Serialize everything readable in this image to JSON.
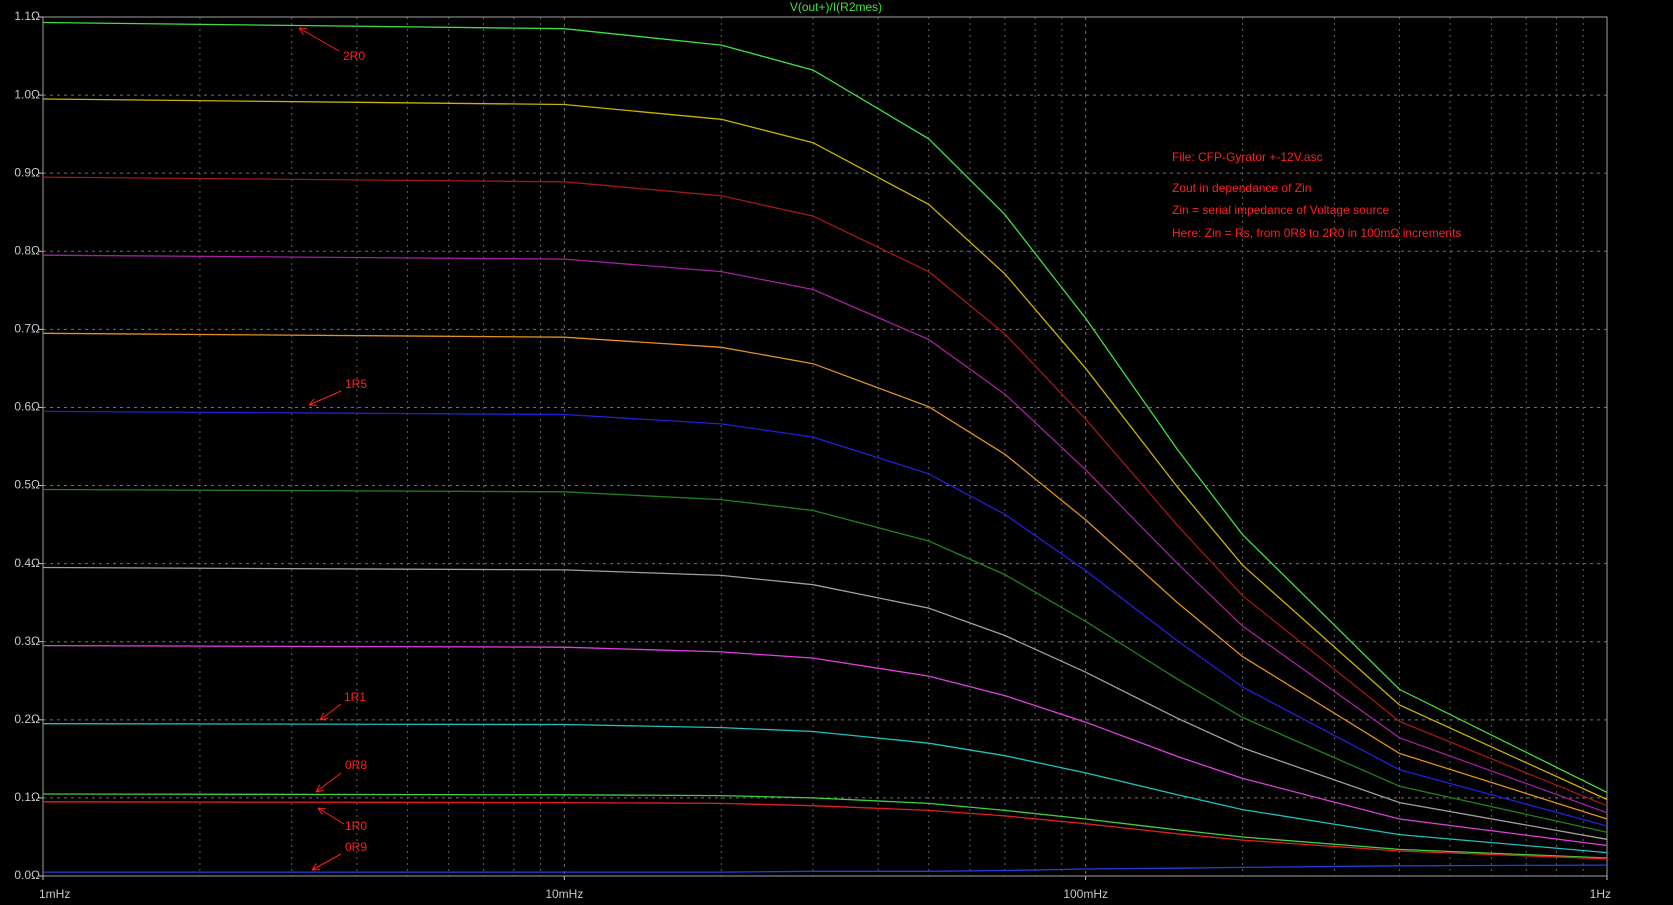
{
  "chart_data": {
    "type": "line",
    "title": "V(out+)/I(R2mes)",
    "log_x": true,
    "grid": true,
    "background": "#000000",
    "title_color": "#40e040",
    "xlim": [
      0.001,
      1
    ],
    "xticks": [
      {
        "value": 0.001,
        "label": "1mHz"
      },
      {
        "value": 0.01,
        "label": "10mHz"
      },
      {
        "value": 0.1,
        "label": "100mHz"
      },
      {
        "value": 1,
        "label": "1Hz"
      }
    ],
    "ylim": [
      0,
      1.1
    ],
    "yticks": [
      {
        "value": 0,
        "label": "0.0Ω"
      },
      {
        "value": 0.1,
        "label": "0.1Ω"
      },
      {
        "value": 0.2,
        "label": "0.2Ω"
      },
      {
        "value": 0.3,
        "label": "0.3Ω"
      },
      {
        "value": 0.4,
        "label": "0.4Ω"
      },
      {
        "value": 0.5,
        "label": "0.5Ω"
      },
      {
        "value": 0.6,
        "label": "0.6Ω"
      },
      {
        "value": 0.7,
        "label": "0.7Ω"
      },
      {
        "value": 0.8,
        "label": "0.8Ω"
      },
      {
        "value": 0.9,
        "label": "0.9Ω"
      },
      {
        "value": 1.0,
        "label": "1.0Ω"
      },
      {
        "value": 1.1,
        "label": "1.1Ω"
      }
    ],
    "x": [
      0.001,
      0.01,
      0.02,
      0.03,
      0.05,
      0.07,
      0.1,
      0.15,
      0.2,
      0.4,
      1
    ],
    "series": [
      {
        "color": "#40e040",
        "values": [
          1.093,
          1.085,
          1.064,
          1.032,
          0.944,
          0.847,
          0.714,
          0.546,
          0.437,
          0.239,
          0.107
        ]
      },
      {
        "color": "#c8b400",
        "values": [
          0.995,
          0.988,
          0.969,
          0.939,
          0.86,
          0.771,
          0.65,
          0.498,
          0.398,
          0.219,
          0.098
        ]
      },
      {
        "color": "#a01818",
        "values": [
          0.895,
          0.889,
          0.871,
          0.845,
          0.774,
          0.694,
          0.585,
          0.449,
          0.359,
          0.198,
          0.09
        ]
      },
      {
        "color": "#a020a0",
        "values": [
          0.795,
          0.79,
          0.774,
          0.751,
          0.687,
          0.617,
          0.52,
          0.4,
          0.32,
          0.177,
          0.081
        ]
      },
      {
        "color": "#e09020",
        "values": [
          0.695,
          0.69,
          0.677,
          0.656,
          0.601,
          0.54,
          0.456,
          0.35,
          0.281,
          0.157,
          0.073
        ]
      },
      {
        "color": "#2020d8",
        "values": [
          0.595,
          0.591,
          0.579,
          0.562,
          0.515,
          0.463,
          0.391,
          0.301,
          0.242,
          0.136,
          0.064
        ]
      },
      {
        "color": "#208020",
        "values": [
          0.495,
          0.492,
          0.482,
          0.468,
          0.429,
          0.386,
          0.326,
          0.252,
          0.203,
          0.115,
          0.056
        ]
      },
      {
        "color": "#a0a0a0",
        "values": [
          0.395,
          0.392,
          0.385,
          0.373,
          0.343,
          0.308,
          0.261,
          0.202,
          0.164,
          0.094,
          0.047
        ]
      },
      {
        "color": "#e040e0",
        "values": [
          0.295,
          0.293,
          0.287,
          0.279,
          0.256,
          0.231,
          0.197,
          0.153,
          0.125,
          0.073,
          0.039
        ]
      },
      {
        "color": "#20c0c0",
        "values": [
          0.195,
          0.194,
          0.19,
          0.185,
          0.17,
          0.154,
          0.132,
          0.104,
          0.085,
          0.053,
          0.03
        ]
      },
      {
        "color": "#40d040",
        "values": [
          0.105,
          0.104,
          0.103,
          0.1,
          0.093,
          0.084,
          0.073,
          0.059,
          0.05,
          0.034,
          0.023
        ]
      },
      {
        "color": "#e02020",
        "values": [
          0.095,
          0.094,
          0.093,
          0.09,
          0.084,
          0.077,
          0.067,
          0.054,
          0.046,
          0.032,
          0.022
        ]
      },
      {
        "color": "#2040e0",
        "values": [
          0.005,
          0.005,
          0.005,
          0.006,
          0.006,
          0.007,
          0.009,
          0.01,
          0.011,
          0.013,
          0.014
        ]
      }
    ],
    "annotations": [
      "2R0",
      "1R5",
      "1R1",
      "0R8",
      "1R0",
      "0R9"
    ],
    "notes": [
      "File: CFP-Gyrator +-12V.asc",
      "Zout in dependance of Zin",
      "Zin = serial impedance of Voltage source",
      "Here: Zin = Rs, from 0R8 to 2R0 in 100mΩ increments"
    ]
  }
}
